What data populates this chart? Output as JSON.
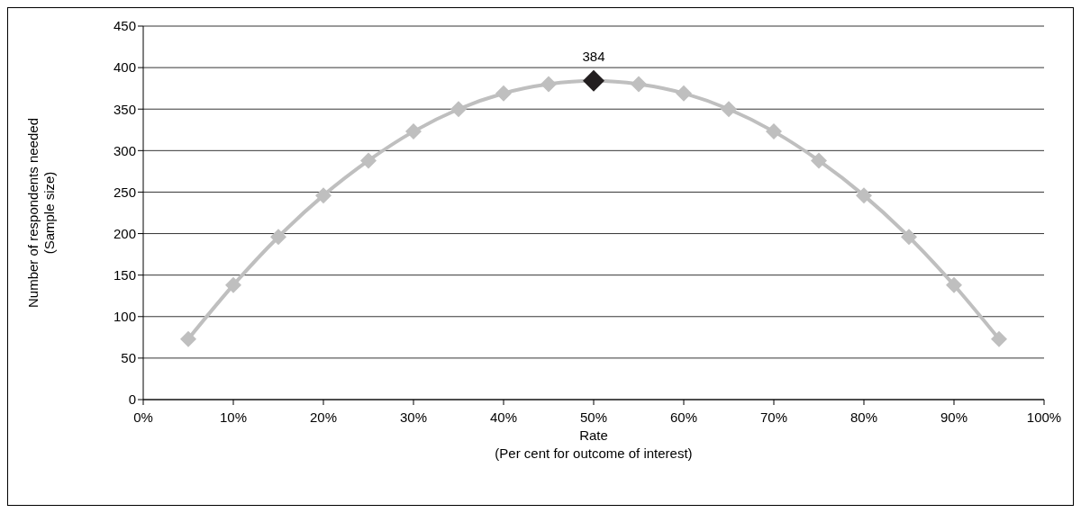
{
  "chart_data": {
    "type": "line",
    "xlabel": "Rate\n(Per cent for outcome of interest)",
    "ylabel": "Number of respondents needed\n(Sample size)",
    "x": [
      5,
      10,
      15,
      20,
      25,
      30,
      35,
      40,
      45,
      50,
      55,
      60,
      65,
      70,
      75,
      80,
      85,
      90,
      95
    ],
    "values": [
      73,
      138,
      196,
      246,
      288,
      323,
      350,
      369,
      380,
      384,
      380,
      369,
      350,
      323,
      288,
      246,
      196,
      138,
      73
    ],
    "color": "#bfbfbf",
    "colors": [
      "#bfbfbf",
      "#bfbfbf",
      "#bfbfbf",
      "#bfbfbf",
      "#bfbfbf",
      "#bfbfbf",
      "#bfbfbf",
      "#bfbfbf",
      "#bfbfbf",
      "#231f20",
      "#bfbfbf",
      "#bfbfbf",
      "#bfbfbf",
      "#bfbfbf",
      "#bfbfbf",
      "#bfbfbf",
      "#bfbfbf",
      "#bfbfbf",
      "#bfbfbf"
    ],
    "value_labels": [
      null,
      null,
      null,
      null,
      null,
      null,
      null,
      null,
      null,
      "384",
      null,
      null,
      null,
      null,
      null,
      null,
      null,
      null,
      null
    ],
    "xlim": [
      0,
      100
    ],
    "xticks": [
      {
        "value": 0,
        "label": "0%"
      },
      {
        "value": 10,
        "label": "10%"
      },
      {
        "value": 20,
        "label": "20%"
      },
      {
        "value": 30,
        "label": "30%"
      },
      {
        "value": 40,
        "label": "40%"
      },
      {
        "value": 50,
        "label": "50%"
      },
      {
        "value": 60,
        "label": "60%"
      },
      {
        "value": 70,
        "label": "70%"
      },
      {
        "value": 80,
        "label": "80%"
      },
      {
        "value": 90,
        "label": "90%"
      },
      {
        "value": 100,
        "label": "100%"
      }
    ],
    "ylim": [
      0,
      450
    ],
    "yticks": [
      0,
      50,
      100,
      150,
      200,
      250,
      300,
      350,
      400,
      450
    ],
    "grid": "y",
    "marker": "diamond",
    "line_style": "solid"
  }
}
